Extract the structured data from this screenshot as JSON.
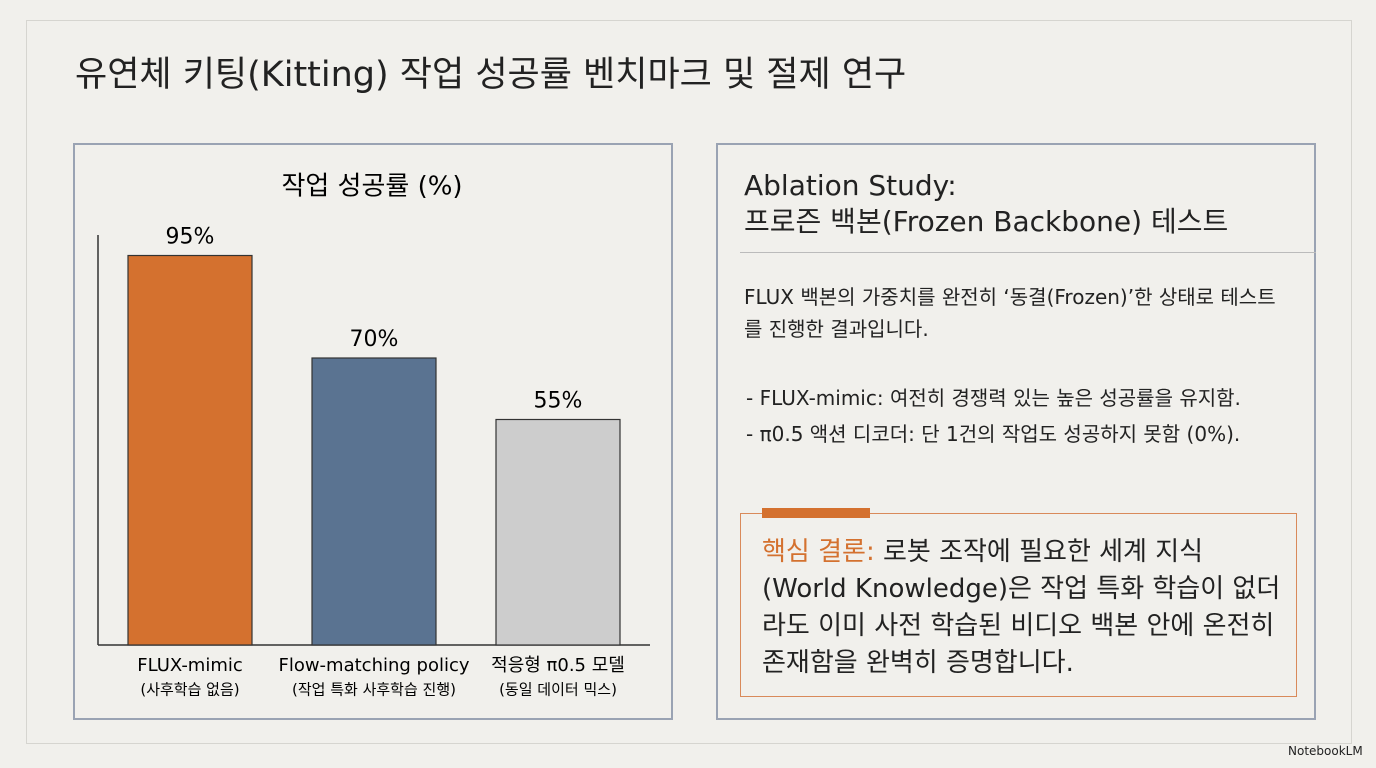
{
  "title": "유연체 키팅(Kitting) 작업 성공률 벤치마크 및 절제 연구",
  "chart_data": {
    "type": "bar",
    "title": "작업 성공률 (%)",
    "categories": [
      "FLUX-mimic",
      "Flow-matching policy",
      "적응형 π0.5 모델"
    ],
    "category_notes": [
      "(사후학습 없음)",
      "(작업 특화 사후학습 진행)",
      "(동일 데이터 믹스)"
    ],
    "values": [
      95,
      70,
      55
    ],
    "value_labels": [
      "95%",
      "70%",
      "55%"
    ],
    "colors": [
      "#d4712f",
      "#5a7391",
      "#cdcdcd"
    ],
    "ylim": [
      0,
      100
    ]
  },
  "panel": {
    "heading": [
      "Ablation Study:",
      "프로즌 백본(Frozen Backbone) 테스트"
    ],
    "description": "FLUX 백본의 가중치를 완전히 ‘동결(Frozen)’한 상태로 테스트를 진행한 결과입니다.",
    "bullets": [
      "- FLUX-mimic: 여전히 경쟁력 있는 높은 성공률을 유지함.",
      "- π0.5 액션 디코더: 단 1건의 작업도 성공하지 못함 (0%)."
    ],
    "conclusion": {
      "label": "핵심 결론:",
      "text": "로봇 조작에 필요한 세계 지식(World Knowledge)은 작업 특화 학습이 없더라도 이미 사전 학습된 비디오 백본 안에 온전히 존재함을 완벽히 증명합니다."
    }
  },
  "footer": "NotebookLM"
}
